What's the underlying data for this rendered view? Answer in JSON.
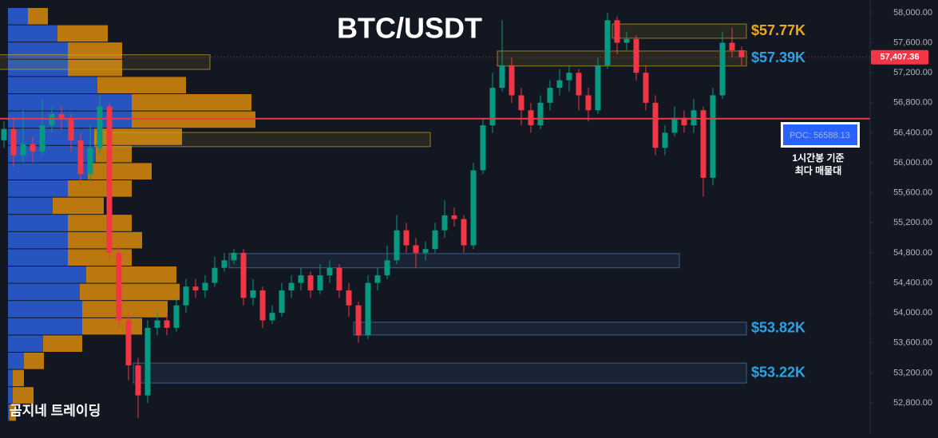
{
  "chart_data": {
    "type": "candlestick",
    "title": "BTC/USDT",
    "watermark": "곰지네 트레이딩",
    "up_color": "#089981",
    "down_color": "#f23645",
    "ylim": [
      52385,
      58170
    ],
    "yticks": [
      {
        "value": 52800,
        "label": "52,800.00"
      },
      {
        "value": 53200,
        "label": "53,200.00"
      },
      {
        "value": 53600,
        "label": "53,600.00"
      },
      {
        "value": 54000,
        "label": "54,000.00"
      },
      {
        "value": 54400,
        "label": "54,400.00"
      },
      {
        "value": 54800,
        "label": "54,800.00"
      },
      {
        "value": 55200,
        "label": "55,200.00"
      },
      {
        "value": 55600,
        "label": "55,600.00"
      },
      {
        "value": 56000,
        "label": "56,000.00"
      },
      {
        "value": 56400,
        "label": "56,400.00"
      },
      {
        "value": 56800,
        "label": "56,800.00"
      },
      {
        "value": 57200,
        "label": "57,200.00"
      },
      {
        "value": 57600,
        "label": "57,600.00"
      },
      {
        "value": 58000,
        "label": "58,000.00"
      }
    ],
    "open": [
      56300,
      56450,
      56100,
      56250,
      56150,
      56500,
      56650,
      56600,
      56300,
      55850,
      56200,
      56750,
      54800,
      53900,
      53300,
      52900,
      53800,
      53900,
      53800,
      54100,
      54350,
      54300,
      54400,
      54600,
      54700,
      54800,
      54200,
      54300,
      53900,
      54000,
      54300,
      54400,
      54500,
      54300,
      54500,
      54600,
      54300,
      54100,
      53700,
      54400,
      54500,
      54700,
      55100,
      54900,
      54800,
      54850,
      55100,
      55300,
      55250,
      54900,
      55900,
      56500,
      57000,
      57300,
      56900,
      56700,
      56500,
      56800,
      57000,
      57100,
      57200,
      56900,
      56700,
      57300,
      57900,
      57600,
      57650,
      57200,
      56800,
      56200,
      56400,
      56600,
      56500,
      56700,
      55800,
      56900,
      57600,
      57500
    ],
    "high": [
      56550,
      56600,
      56700,
      56350,
      56850,
      56750,
      56750,
      56650,
      56400,
      56500,
      56900,
      56800,
      54900,
      54000,
      53400,
      53900,
      54000,
      54000,
      54200,
      54450,
      54450,
      54500,
      54750,
      54800,
      54850,
      54850,
      54450,
      54350,
      54100,
      54400,
      54500,
      54600,
      54550,
      54650,
      54700,
      54650,
      54400,
      54150,
      54500,
      54600,
      54900,
      55300,
      55200,
      55000,
      54950,
      55200,
      55500,
      55400,
      55300,
      56000,
      56600,
      57200,
      57900,
      57400,
      57000,
      56800,
      56900,
      57100,
      57250,
      57300,
      57250,
      57000,
      57400,
      58000,
      57950,
      57750,
      57700,
      57300,
      56900,
      56500,
      56750,
      56700,
      56850,
      56750,
      57000,
      57750,
      57800,
      57550
    ],
    "low": [
      56200,
      55950,
      56000,
      56000,
      56100,
      56400,
      56450,
      56150,
      55700,
      55750,
      56100,
      54700,
      53800,
      53100,
      52600,
      52800,
      53700,
      53700,
      53750,
      54000,
      54200,
      54200,
      54350,
      54550,
      54650,
      54100,
      54100,
      53800,
      53850,
      53950,
      54200,
      54300,
      54200,
      54250,
      54400,
      54200,
      53950,
      53600,
      53650,
      54300,
      54450,
      54650,
      54800,
      54600,
      54700,
      54800,
      55000,
      55150,
      54800,
      54850,
      55850,
      56400,
      56950,
      56800,
      56500,
      56400,
      56450,
      56700,
      56900,
      56950,
      56700,
      56550,
      56650,
      57250,
      57450,
      57500,
      57100,
      56700,
      56100,
      56100,
      56350,
      56400,
      56400,
      55550,
      55700,
      56850,
      57400,
      57300
    ],
    "close": [
      56450,
      56100,
      56250,
      56150,
      56500,
      56650,
      56600,
      56300,
      55850,
      56200,
      56750,
      54800,
      53900,
      53300,
      52900,
      53800,
      53900,
      53800,
      54100,
      54350,
      54300,
      54400,
      54600,
      54700,
      54800,
      54200,
      54300,
      53900,
      54000,
      54300,
      54400,
      54500,
      54300,
      54500,
      54600,
      54300,
      54100,
      53700,
      54400,
      54500,
      54700,
      55100,
      54900,
      54800,
      54850,
      55100,
      55300,
      55250,
      54900,
      55900,
      56500,
      57000,
      57300,
      56900,
      56700,
      56500,
      56800,
      57000,
      57100,
      57200,
      56900,
      56700,
      57300,
      57900,
      57600,
      57650,
      57200,
      56800,
      56200,
      56400,
      56600,
      56500,
      56700,
      55800,
      56900,
      57600,
      57500,
      57407.36
    ],
    "last_price": {
      "value": 57407.36,
      "label": "57,407.36"
    },
    "poc": {
      "value": 56588.13,
      "label": "POC: 56588.13",
      "color": "#f23645"
    },
    "annotation": [
      "1시간봉 기준",
      "최다 매물대"
    ],
    "zones": [
      {
        "low": 57660,
        "high": 57850,
        "start": 64,
        "end": 77,
        "color": "#c9a227",
        "label": "$57.77K",
        "label_color": "#f0a81e"
      },
      {
        "low": 57290,
        "high": 57490,
        "start": 52,
        "end": 77,
        "color": "#c9a227",
        "label": "$57.39K",
        "label_color": "#2aa3e6"
      },
      {
        "low": 57245,
        "high": 57440,
        "start": 0,
        "end": 21,
        "color": "#c9a227"
      },
      {
        "low": 56215,
        "high": 56405,
        "start": 10,
        "end": 44,
        "color": "#c9a227"
      },
      {
        "low": 54600,
        "high": 54790,
        "start": 24,
        "end": 70,
        "color": "#4a7ab5"
      },
      {
        "low": 53705,
        "high": 53875,
        "start": 37,
        "end": 77,
        "color": "#4a7ab5",
        "label": "$53.82K",
        "label_color": "#2aa3e6"
      },
      {
        "low": 53065,
        "high": 53330,
        "start": 14,
        "end": 77,
        "color": "#4a7ab5",
        "label": "$53.22K",
        "label_color": "#2aa3e6"
      }
    ],
    "volume_profile": {
      "buy_color": "#2b5fd9",
      "sell_color": "#d98a0c",
      "buy": [
        25,
        62,
        75,
        75,
        112,
        155,
        155,
        108,
        110,
        100,
        75,
        56,
        75,
        75,
        75,
        98,
        90,
        93,
        93,
        44,
        20,
        6,
        6,
        2
      ],
      "sell": [
        25,
        63,
        68,
        68,
        111,
        150,
        155,
        110,
        45,
        80,
        80,
        64,
        80,
        93,
        80,
        113,
        125,
        107,
        75,
        49,
        25,
        14,
        26,
        8
      ]
    }
  }
}
